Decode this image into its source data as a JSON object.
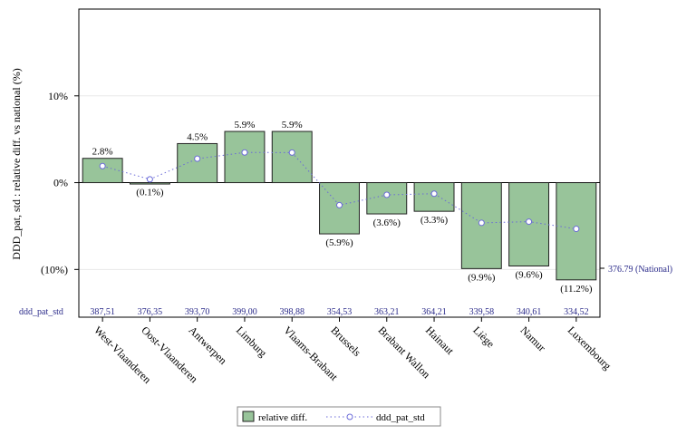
{
  "chart_data": {
    "type": "bar",
    "ylabel": "DDD_pat, std : relative diff. vs national (%)",
    "ylim": [
      -0.155,
      0.2
    ],
    "yticks": [
      {
        "value": 0.1,
        "label": "10%"
      },
      {
        "value": 0,
        "label": "0%"
      },
      {
        "value": -0.1,
        "label": "(10%)"
      }
    ],
    "categories": [
      "West-Vlaanderen",
      "Oost-Vlaanderen",
      "Antwerpen",
      "Limburg",
      "Vlaams-Brabant",
      "Brussels",
      "Brabant Wallon",
      "Hainaut",
      "Liège",
      "Namur",
      "Luxembourg"
    ],
    "series": [
      {
        "name": "relative diff.",
        "color": "#98c49a",
        "values": [
          0.028,
          -0.001,
          0.045,
          0.059,
          0.059,
          -0.059,
          -0.036,
          -0.033,
          -0.099,
          -0.096,
          -0.112
        ],
        "labels": [
          "2.8%",
          "(0.1%)",
          "4.5%",
          "5.9%",
          "5.9%",
          "(5.9%)",
          "(3.6%)",
          "(3.3%)",
          "(9.9%)",
          "(9.6%)",
          "(11.2%)"
        ]
      },
      {
        "name": "ddd_pat_std",
        "color": "#6a6ad8",
        "values": [
          387.51,
          376.35,
          393.7,
          399.0,
          398.88,
          354.53,
          363.21,
          364.21,
          339.58,
          340.61,
          334.52
        ],
        "labels": [
          "387,51",
          "376,35",
          "393,70",
          "399,00",
          "398,88",
          "354,53",
          "363,21",
          "364,21",
          "339,58",
          "340,61",
          "334,52"
        ]
      }
    ],
    "row_label": "ddd_pat_std",
    "reference_label": "376.79 (National)",
    "secondary_range": [
      260,
      520
    ],
    "grid": true,
    "legend_position": "bottom"
  }
}
